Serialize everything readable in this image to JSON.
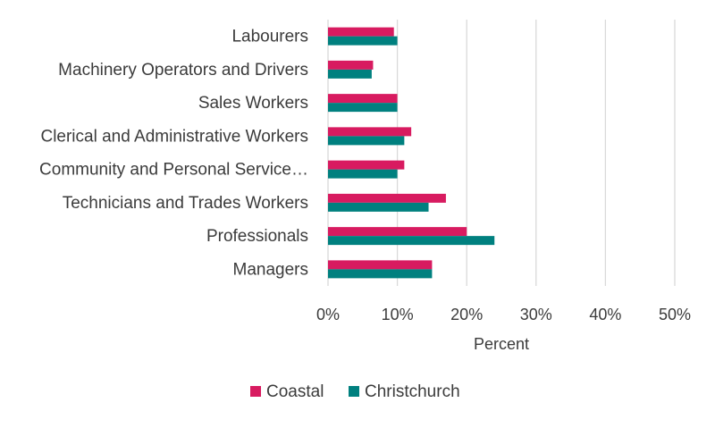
{
  "chart_data": {
    "type": "bar",
    "orientation": "horizontal",
    "categories": [
      "Labourers",
      "Machinery Operators and Drivers",
      "Sales Workers",
      "Clerical and Administrative Workers",
      "Community and Personal Service…",
      "Technicians and Trades Workers",
      "Professionals",
      "Managers"
    ],
    "series": [
      {
        "name": "Coastal",
        "color": "#d81b60",
        "values": [
          9.5,
          6.5,
          10,
          12,
          11,
          17,
          20,
          15
        ]
      },
      {
        "name": "Christchurch",
        "color": "#00807f",
        "values": [
          10,
          6.3,
          10,
          11,
          10,
          14.5,
          24,
          15
        ]
      }
    ],
    "xlabel": "Percent",
    "xlim": [
      0,
      50
    ],
    "xticks": [
      0,
      10,
      20,
      30,
      40,
      50
    ],
    "xtick_labels": [
      "0%",
      "10%",
      "20%",
      "30%",
      "40%",
      "50%"
    ],
    "grid": true,
    "legend_position": "bottom"
  }
}
